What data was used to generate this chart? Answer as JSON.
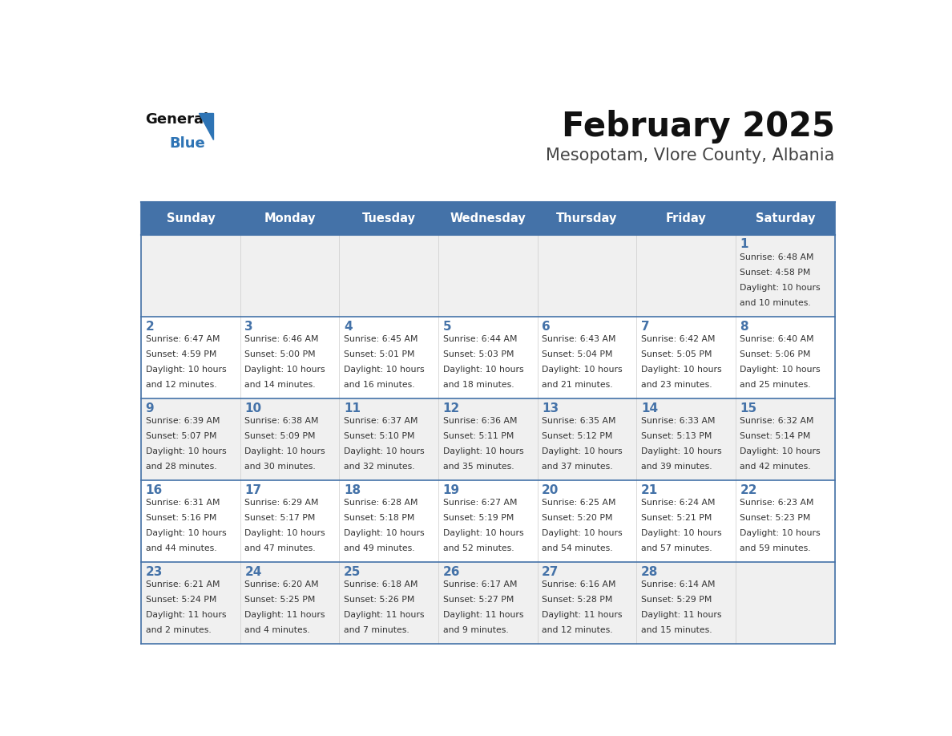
{
  "title": "February 2025",
  "subtitle": "Mesopotam, Vlore County, Albania",
  "header_bg": "#4472a8",
  "header_text_color": "#ffffff",
  "weekdays": [
    "Sunday",
    "Monday",
    "Tuesday",
    "Wednesday",
    "Thursday",
    "Friday",
    "Saturday"
  ],
  "row_bg_odd": "#f0f0f0",
  "row_bg_even": "#ffffff",
  "cell_border_color": "#4472a8",
  "day_number_color": "#4472a8",
  "info_text_color": "#333333",
  "title_color": "#111111",
  "subtitle_color": "#444444",
  "logo_general_color": "#111111",
  "logo_blue_color": "#2e74b5",
  "calendar": [
    [
      {
        "day": null,
        "sunrise": null,
        "sunset": null,
        "daylight": null
      },
      {
        "day": null,
        "sunrise": null,
        "sunset": null,
        "daylight": null
      },
      {
        "day": null,
        "sunrise": null,
        "sunset": null,
        "daylight": null
      },
      {
        "day": null,
        "sunrise": null,
        "sunset": null,
        "daylight": null
      },
      {
        "day": null,
        "sunrise": null,
        "sunset": null,
        "daylight": null
      },
      {
        "day": null,
        "sunrise": null,
        "sunset": null,
        "daylight": null
      },
      {
        "day": 1,
        "sunrise": "6:48 AM",
        "sunset": "4:58 PM",
        "daylight": "10 hours\nand 10 minutes."
      }
    ],
    [
      {
        "day": 2,
        "sunrise": "6:47 AM",
        "sunset": "4:59 PM",
        "daylight": "10 hours\nand 12 minutes."
      },
      {
        "day": 3,
        "sunrise": "6:46 AM",
        "sunset": "5:00 PM",
        "daylight": "10 hours\nand 14 minutes."
      },
      {
        "day": 4,
        "sunrise": "6:45 AM",
        "sunset": "5:01 PM",
        "daylight": "10 hours\nand 16 minutes."
      },
      {
        "day": 5,
        "sunrise": "6:44 AM",
        "sunset": "5:03 PM",
        "daylight": "10 hours\nand 18 minutes."
      },
      {
        "day": 6,
        "sunrise": "6:43 AM",
        "sunset": "5:04 PM",
        "daylight": "10 hours\nand 21 minutes."
      },
      {
        "day": 7,
        "sunrise": "6:42 AM",
        "sunset": "5:05 PM",
        "daylight": "10 hours\nand 23 minutes."
      },
      {
        "day": 8,
        "sunrise": "6:40 AM",
        "sunset": "5:06 PM",
        "daylight": "10 hours\nand 25 minutes."
      }
    ],
    [
      {
        "day": 9,
        "sunrise": "6:39 AM",
        "sunset": "5:07 PM",
        "daylight": "10 hours\nand 28 minutes."
      },
      {
        "day": 10,
        "sunrise": "6:38 AM",
        "sunset": "5:09 PM",
        "daylight": "10 hours\nand 30 minutes."
      },
      {
        "day": 11,
        "sunrise": "6:37 AM",
        "sunset": "5:10 PM",
        "daylight": "10 hours\nand 32 minutes."
      },
      {
        "day": 12,
        "sunrise": "6:36 AM",
        "sunset": "5:11 PM",
        "daylight": "10 hours\nand 35 minutes."
      },
      {
        "day": 13,
        "sunrise": "6:35 AM",
        "sunset": "5:12 PM",
        "daylight": "10 hours\nand 37 minutes."
      },
      {
        "day": 14,
        "sunrise": "6:33 AM",
        "sunset": "5:13 PM",
        "daylight": "10 hours\nand 39 minutes."
      },
      {
        "day": 15,
        "sunrise": "6:32 AM",
        "sunset": "5:14 PM",
        "daylight": "10 hours\nand 42 minutes."
      }
    ],
    [
      {
        "day": 16,
        "sunrise": "6:31 AM",
        "sunset": "5:16 PM",
        "daylight": "10 hours\nand 44 minutes."
      },
      {
        "day": 17,
        "sunrise": "6:29 AM",
        "sunset": "5:17 PM",
        "daylight": "10 hours\nand 47 minutes."
      },
      {
        "day": 18,
        "sunrise": "6:28 AM",
        "sunset": "5:18 PM",
        "daylight": "10 hours\nand 49 minutes."
      },
      {
        "day": 19,
        "sunrise": "6:27 AM",
        "sunset": "5:19 PM",
        "daylight": "10 hours\nand 52 minutes."
      },
      {
        "day": 20,
        "sunrise": "6:25 AM",
        "sunset": "5:20 PM",
        "daylight": "10 hours\nand 54 minutes."
      },
      {
        "day": 21,
        "sunrise": "6:24 AM",
        "sunset": "5:21 PM",
        "daylight": "10 hours\nand 57 minutes."
      },
      {
        "day": 22,
        "sunrise": "6:23 AM",
        "sunset": "5:23 PM",
        "daylight": "10 hours\nand 59 minutes."
      }
    ],
    [
      {
        "day": 23,
        "sunrise": "6:21 AM",
        "sunset": "5:24 PM",
        "daylight": "11 hours\nand 2 minutes."
      },
      {
        "day": 24,
        "sunrise": "6:20 AM",
        "sunset": "5:25 PM",
        "daylight": "11 hours\nand 4 minutes."
      },
      {
        "day": 25,
        "sunrise": "6:18 AM",
        "sunset": "5:26 PM",
        "daylight": "11 hours\nand 7 minutes."
      },
      {
        "day": 26,
        "sunrise": "6:17 AM",
        "sunset": "5:27 PM",
        "daylight": "11 hours\nand 9 minutes."
      },
      {
        "day": 27,
        "sunrise": "6:16 AM",
        "sunset": "5:28 PM",
        "daylight": "11 hours\nand 12 minutes."
      },
      {
        "day": 28,
        "sunrise": "6:14 AM",
        "sunset": "5:29 PM",
        "daylight": "11 hours\nand 15 minutes."
      },
      {
        "day": null,
        "sunrise": null,
        "sunset": null,
        "daylight": null
      }
    ]
  ]
}
